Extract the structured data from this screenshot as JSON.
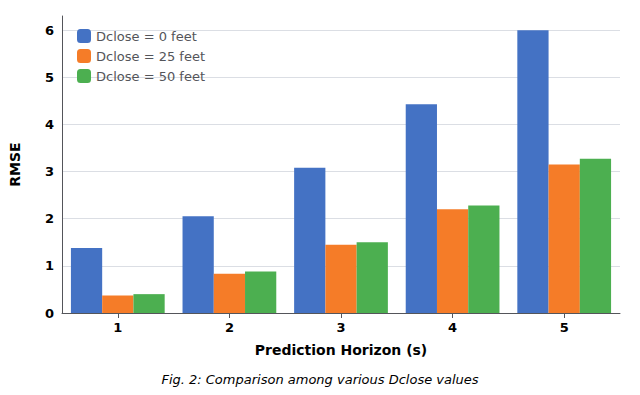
{
  "chart_data": {
    "type": "bar",
    "title": "Fig. 2: Comparison among various Dclose values",
    "xlabel": "Prediction Horizon (s)",
    "ylabel": "RMSE",
    "categories": [
      "1",
      "2",
      "3",
      "4",
      "5"
    ],
    "series": [
      {
        "name": "Dclose = 0 feet",
        "color": "#4472C4",
        "values": [
          1.38,
          2.05,
          3.08,
          4.43,
          6.0
        ]
      },
      {
        "name": "Dclose = 25 feet",
        "color": "#F57C28",
        "values": [
          0.37,
          0.83,
          1.45,
          2.2,
          3.15
        ]
      },
      {
        "name": "Dclose = 50 feet",
        "color": "#4CAF50",
        "values": [
          0.4,
          0.88,
          1.5,
          2.28,
          3.27
        ]
      }
    ],
    "ylim": [
      0,
      6.3
    ],
    "yticks": [
      0,
      1,
      2,
      3,
      4,
      5,
      6
    ],
    "grid": true,
    "legend": "upper left"
  }
}
